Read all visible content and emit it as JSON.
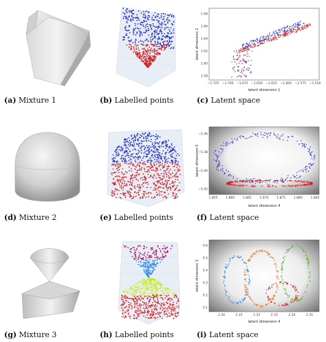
{
  "rows": [
    {
      "captions": [
        {
          "tag": "(a)",
          "text": "Mixture 1"
        },
        {
          "tag": "(b)",
          "text": "Labelled points"
        },
        {
          "tag": "(c)",
          "text": "Latent space"
        }
      ],
      "latent": {
        "xlabel": "latent dimension 1",
        "ylabel": "latent dimension 2",
        "xticks": [
          "−1.725",
          "−1.700",
          "−1.675",
          "−1.650",
          "−1.625",
          "−1.600",
          "−1.575",
          "−1.550"
        ],
        "yticks": [
          "1.68",
          "1.66",
          "1.64",
          "1.62",
          "1.60",
          "1.58"
        ]
      }
    },
    {
      "captions": [
        {
          "tag": "(d)",
          "text": "Mixture 2"
        },
        {
          "tag": "(e)",
          "text": "Labelled points"
        },
        {
          "tag": "(f)",
          "text": "Latent space"
        }
      ],
      "latent": {
        "xlabel": "latent dimension 4",
        "ylabel": "latent dimension 5",
        "xticks": [
          "1.855",
          "1.860",
          "1.865",
          "1.870",
          "1.875",
          "1.880",
          "1.885"
        ],
        "yticks": [
          "−5.36",
          "−5.38",
          "−5.40",
          "−5.42"
        ]
      }
    },
    {
      "captions": [
        {
          "tag": "(g)",
          "text": "Mixture 3"
        },
        {
          "tag": "(h)",
          "text": "Labelled points"
        },
        {
          "tag": "(i)",
          "text": "Latent space"
        }
      ],
      "latent": {
        "xlabel": "latent dimension 4",
        "ylabel": "latent dimension 3",
        "xticks": [
          "2.30",
          "2.31",
          "2.32",
          "2.33",
          "2.34",
          "2.35"
        ],
        "yticks": [
          "0.6",
          "0.5",
          "0.4",
          "0.3",
          "0.2",
          "0.1"
        ]
      }
    }
  ],
  "colors": {
    "red": "#d62020",
    "blue": "#1f2ccf",
    "orange": "#f07a1a",
    "green": "#5ab82c",
    "lightblue": "#3b8ee8",
    "magenta": "#b0186a",
    "lime": "#c8ea1a",
    "grey": "#8a8a8a"
  }
}
